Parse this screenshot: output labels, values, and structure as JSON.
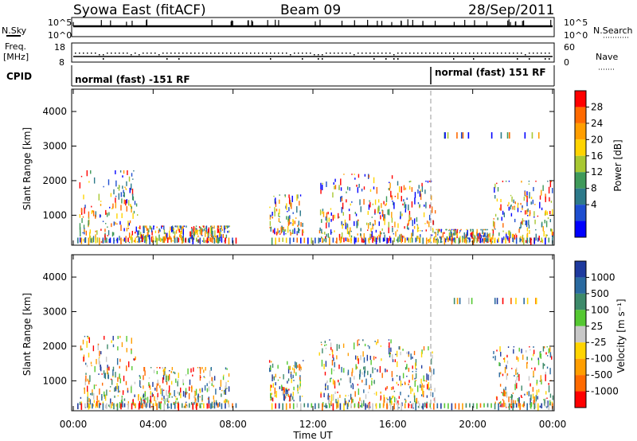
{
  "header": {
    "station": "Syowa East (fitACF)",
    "beam": "Beam 09",
    "date": "28/Sep/2011"
  },
  "top_strips": {
    "nsky_label": "N.Sky",
    "nsky_ticks": [
      "10^5",
      "10^0"
    ],
    "nsearch_label": "N.Search",
    "nsearch_ticks": [
      "10^5",
      "10^0"
    ],
    "freq_label_1": "Freq.",
    "freq_label_2": "[MHz]",
    "freq_ticks": [
      "18",
      "8"
    ],
    "nave_label": "Nave",
    "nave_ticks": [
      "60",
      "0"
    ],
    "cpid_label": "CPID",
    "cpid_modes": [
      {
        "label": "normal (fast) -151 RF",
        "start_hour": 0
      },
      {
        "label": "normal (fast) 151 RF",
        "start_hour": 18
      }
    ]
  },
  "power_scale": {
    "label": "Power [dB]",
    "ticks": [
      "28",
      "24",
      "20",
      "16",
      "12",
      "8",
      "4"
    ],
    "colors": [
      "#ff0000",
      "#ff6a00",
      "#ff9e00",
      "#ffd400",
      "#a8c832",
      "#3f9a5a",
      "#2d7a8a",
      "#1e4ed0",
      "#0000ff"
    ]
  },
  "velocity_scale": {
    "label": "Velocity [m s⁻¹]",
    "ticks": [
      "1000",
      "500",
      "100",
      "25",
      "-25",
      "-100",
      "-500",
      "-1000"
    ],
    "colors": [
      "#1e3a9e",
      "#2a6aa0",
      "#3d8a6a",
      "#55c832",
      "#c8c8c8",
      "#ffd400",
      "#ff9e00",
      "#ff6a00",
      "#ff0000"
    ]
  },
  "chart_data": {
    "type": "heatmap",
    "title": "Syowa East (fitACF)  Beam 09  28/Sep/2011",
    "xlabel": "Time UT",
    "x_ticks": [
      "00:00",
      "04:00",
      "08:00",
      "12:00",
      "16:00",
      "20:00",
      "00:00"
    ],
    "xlim_hours": [
      0,
      24
    ],
    "panels": [
      {
        "name": "Power",
        "ylabel": "Slant Range [km]",
        "y_ticks": [
          1000,
          2000,
          3000,
          4000
        ],
        "ylim": [
          180,
          4600
        ],
        "colorbar": "Power [dB]",
        "echo_regions": [
          {
            "t": [
              0.3,
              3.2
            ],
            "r": [
              200,
              2300
            ],
            "value_dB": "8-28"
          },
          {
            "t": [
              3.2,
              7.8
            ],
            "r": [
              200,
              700
            ],
            "value_dB": "8-28"
          },
          {
            "t": [
              9.8,
              11.5
            ],
            "r": [
              400,
              1600
            ],
            "value_dB": "4-12"
          },
          {
            "t": [
              12.3,
              16.2
            ],
            "r": [
              200,
              2200
            ],
            "value_dB": "8-28"
          },
          {
            "t": [
              16.2,
              18.1
            ],
            "r": [
              200,
              2000
            ],
            "value_dB": "4-20"
          },
          {
            "t": [
              18.1,
              21.0
            ],
            "r": [
              200,
              600
            ],
            "value_dB": "4-12"
          },
          {
            "t": [
              21.0,
              24.0
            ],
            "r": [
              200,
              2000
            ],
            "value_dB": "8-28"
          }
        ]
      },
      {
        "name": "Velocity",
        "ylabel": "Slant Range [km]",
        "y_ticks": [
          1000,
          2000,
          3000,
          4000
        ],
        "ylim": [
          180,
          4600
        ],
        "colorbar": "Velocity [m s⁻¹]",
        "echo_regions": [
          {
            "t": [
              0.3,
              3.2
            ],
            "r": [
              200,
              2300
            ],
            "velocity": "-500 to 100"
          },
          {
            "t": [
              3.2,
              7.8
            ],
            "r": [
              200,
              1400
            ],
            "velocity": "-500 to -25"
          },
          {
            "t": [
              9.8,
              11.5
            ],
            "r": [
              400,
              1600
            ],
            "velocity": "-100 to 500"
          },
          {
            "t": [
              12.3,
              16.2
            ],
            "r": [
              200,
              2200
            ],
            "velocity": "-100 to 1000"
          },
          {
            "t": [
              16.2,
              18.1
            ],
            "r": [
              200,
              2000
            ],
            "velocity": "25 to 1000"
          },
          {
            "t": [
              21.0,
              24.0
            ],
            "r": [
              200,
              2000
            ],
            "velocity": "-1000 to 1000"
          }
        ]
      }
    ]
  }
}
